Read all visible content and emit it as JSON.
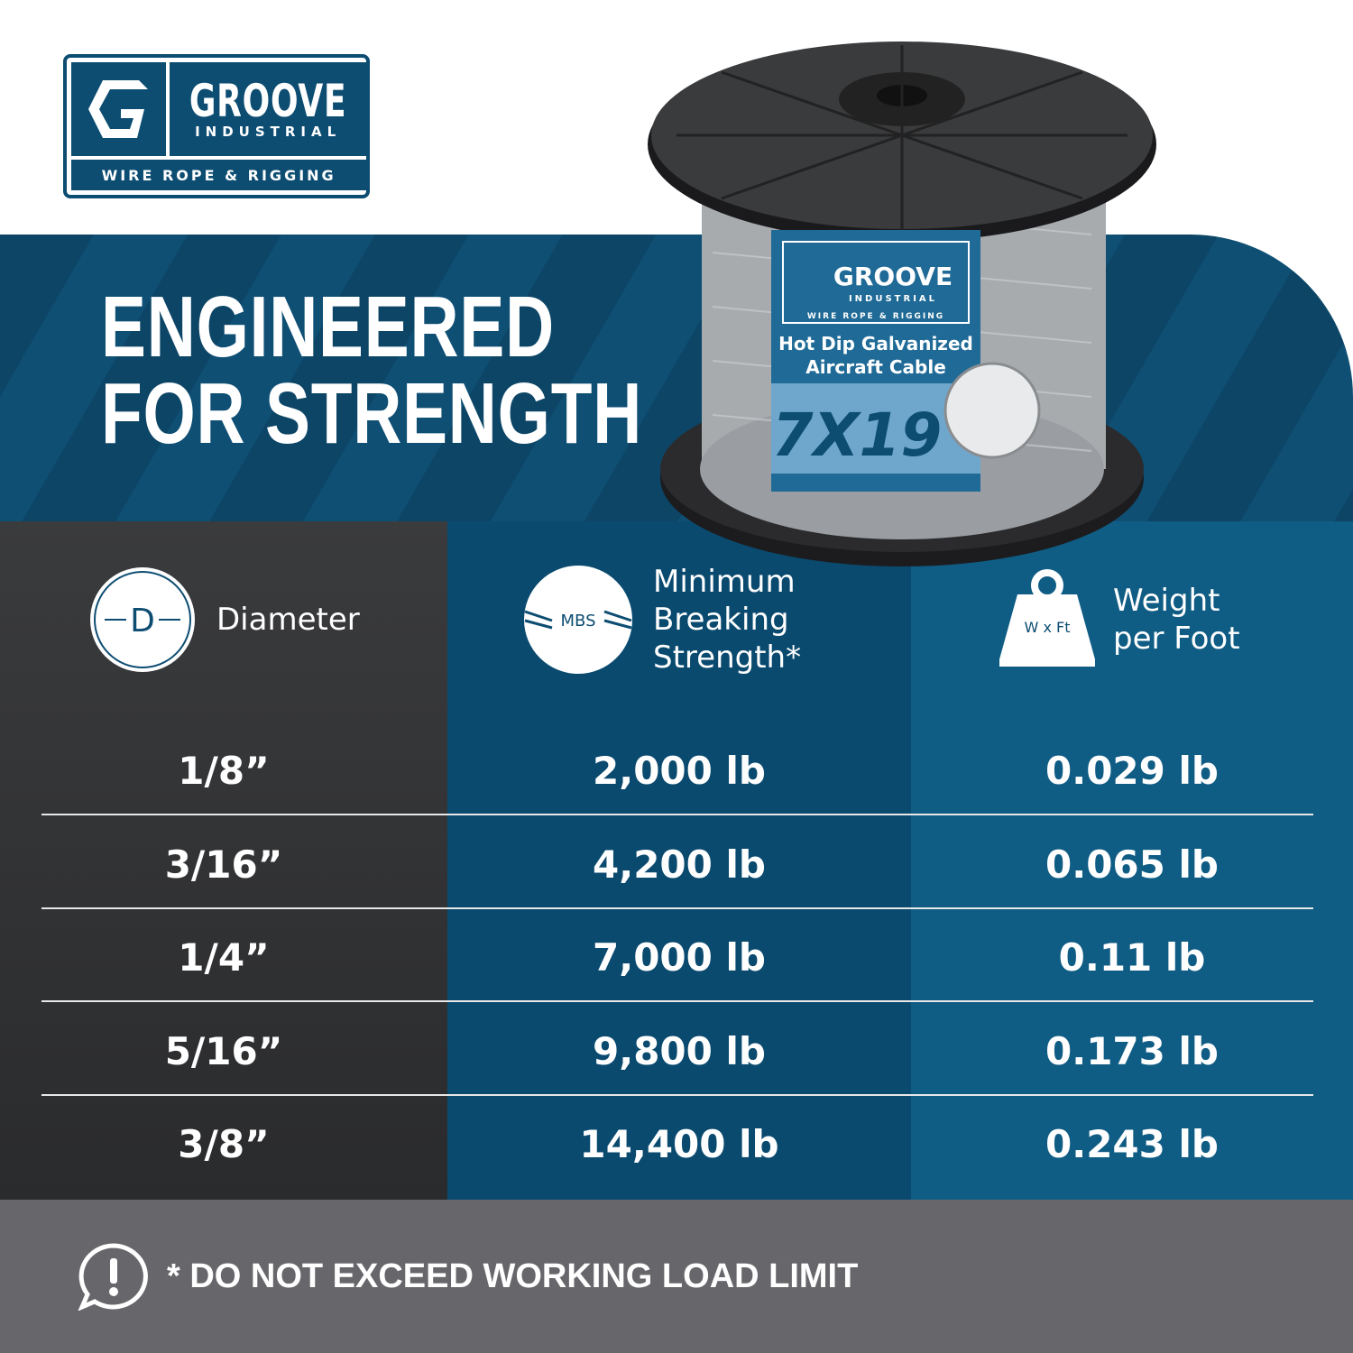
{
  "logo": {
    "brand": "GROOVE",
    "sub": "INDUSTRIAL",
    "tagline": "WIRE ROPE & RIGGING"
  },
  "headline": {
    "line1": "ENGINEERED",
    "line2": "FOR STRENGTH"
  },
  "product_label": {
    "brand": "GROOVE",
    "sub": "INDUSTRIAL",
    "tagline": "WIRE ROPE & RIGGING",
    "line1": "Hot Dip Galvanized",
    "line2": "Aircraft Cable",
    "construction": "7X19"
  },
  "table": {
    "headers": [
      {
        "icon": "diameter-icon",
        "icon_text": "D",
        "label": "Diameter"
      },
      {
        "icon": "cable-break-icon",
        "icon_text": "MBS",
        "label_lines": [
          "Minimum",
          "Breaking",
          "Strength*"
        ]
      },
      {
        "icon": "weight-icon",
        "icon_text": "W x Ft",
        "label_lines": [
          "Weight",
          "per Foot"
        ]
      }
    ],
    "rows": [
      [
        "1/8”",
        "2,000 lb",
        "0.029 lb"
      ],
      [
        "3/16”",
        "4,200 lb",
        "0.065 lb"
      ],
      [
        "1/4”",
        "7,000 lb",
        "0.11 lb"
      ],
      [
        "5/16”",
        "9,800 lb",
        "0.173 lb"
      ],
      [
        "3/8”",
        "14,400 lb",
        "0.243 lb"
      ]
    ]
  },
  "footer": {
    "icon": "alert-icon",
    "text": "* DO NOT EXCEED WORKING LOAD LIMIT"
  },
  "colors": {
    "brand_blue": "#0d4d72",
    "dark": "#333436",
    "mid_blue": "#0a4a6f",
    "light_blue": "#0f5c84",
    "footer_gray": "#67676b"
  }
}
